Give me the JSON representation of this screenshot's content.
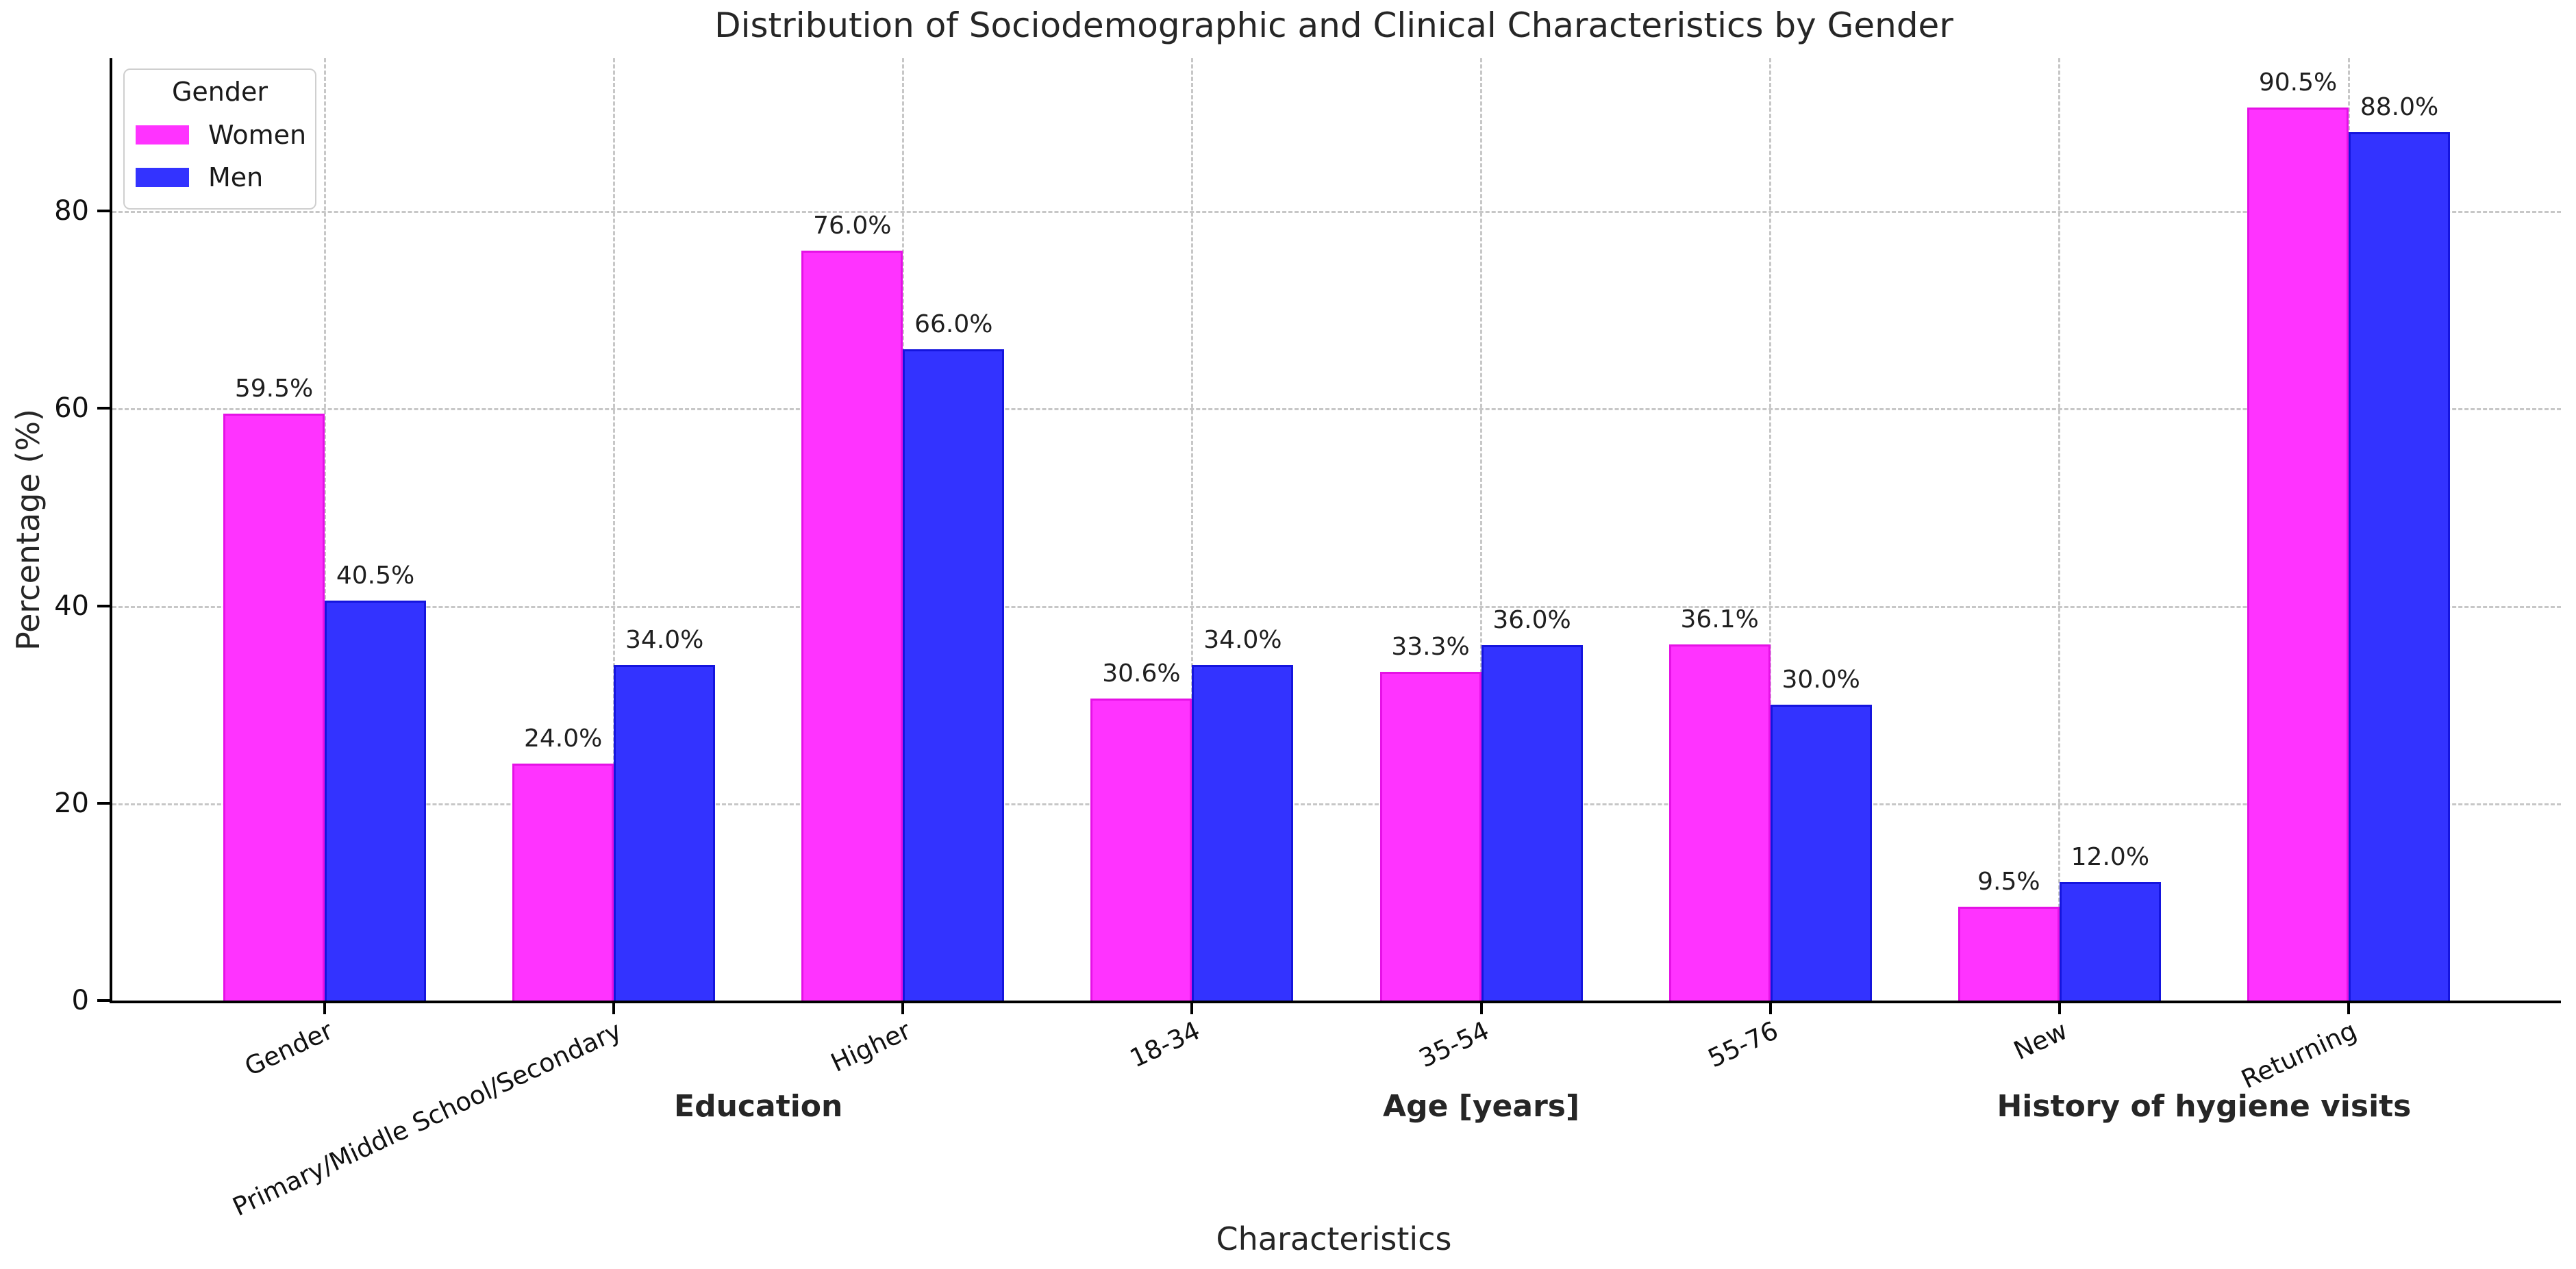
{
  "chart_data": {
    "type": "bar",
    "title": "Distribution of Sociodemographic and Clinical Characteristics by Gender",
    "xlabel": "Characteristics",
    "ylabel": "Percentage (%)",
    "categories": [
      "Gender",
      "Primary/Middle School/Secondary",
      "Higher",
      "18-34",
      "35-54",
      "55-76",
      "New",
      "Returning"
    ],
    "series": [
      {
        "name": "Women",
        "color": "#FF33FF",
        "edge_color": "#E512E5",
        "values": [
          59.5,
          24.0,
          76.0,
          30.6,
          33.3,
          36.1,
          9.5,
          90.5
        ]
      },
      {
        "name": "Men",
        "color": "#3333FF",
        "edge_color": "#1515DE",
        "values": [
          40.5,
          34.0,
          66.0,
          34.0,
          36.0,
          30.0,
          12.0,
          88.0
        ]
      }
    ],
    "bar_value_suffix": "%",
    "yticks": [
      0,
      20,
      40,
      60,
      80
    ],
    "ylim": [
      0,
      95.5
    ],
    "grid": {
      "style": "dashed",
      "color": "#C7C7C7"
    },
    "legend": {
      "title": "Gender",
      "position": "upper left"
    },
    "group_labels": [
      {
        "text": "Education",
        "position": 1.5
      },
      {
        "text": "Age [years]",
        "position": 4
      },
      {
        "text": "History of hygiene visits",
        "position": 6.5
      }
    ],
    "tick_label_rotation_deg": 25
  }
}
